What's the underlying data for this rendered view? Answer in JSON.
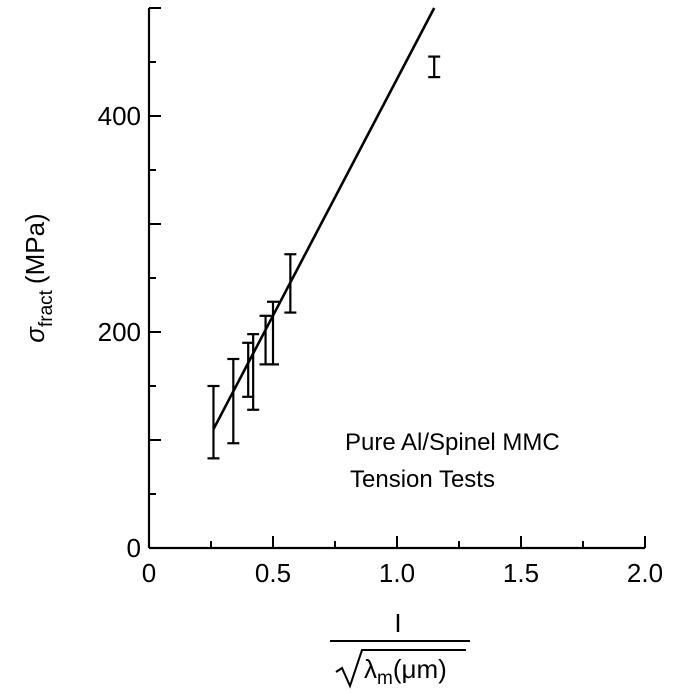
{
  "chart_data": {
    "type": "scatter",
    "x_ticks": [
      {
        "value": 0,
        "label": "0"
      },
      {
        "value": 0.5,
        "label": "0.5"
      },
      {
        "value": 1.0,
        "label": "1.0"
      },
      {
        "value": 1.5,
        "label": "1.5"
      },
      {
        "value": 2.0,
        "label": "2.0"
      }
    ],
    "y_ticks": [
      {
        "value": 0,
        "label": "0"
      },
      {
        "value": 200,
        "label": "200"
      },
      {
        "value": 400,
        "label": "400"
      }
    ],
    "xlim": [
      0,
      2.0
    ],
    "ylim": [
      0,
      500
    ],
    "ylabel_symbol": "σ",
    "ylabel_subscript": "fract",
    "ylabel_unit": "(MPa)",
    "xlabel_numerator": "I",
    "xlabel_lambda": "λ",
    "xlabel_lambda_sub": "m",
    "xlabel_unit": "(μm)",
    "annotation_lines": [
      "Pure Al/Spinel MMC",
      "Tension Tests"
    ],
    "error_bars": [
      {
        "x": 0.26,
        "low": 83,
        "high": 150
      },
      {
        "x": 0.34,
        "low": 97,
        "high": 175
      },
      {
        "x": 0.4,
        "low": 140,
        "high": 190
      },
      {
        "x": 0.42,
        "low": 128,
        "high": 198
      },
      {
        "x": 0.47,
        "low": 170,
        "high": 215
      },
      {
        "x": 0.5,
        "low": 170,
        "high": 228
      },
      {
        "x": 0.57,
        "low": 218,
        "high": 272
      },
      {
        "x": 1.15,
        "low": 436,
        "high": 455
      }
    ],
    "fit_line": {
      "x1": 0.26,
      "y1": 110,
      "x2": 1.15,
      "y2": 500
    },
    "grid": false,
    "legend": "none"
  }
}
